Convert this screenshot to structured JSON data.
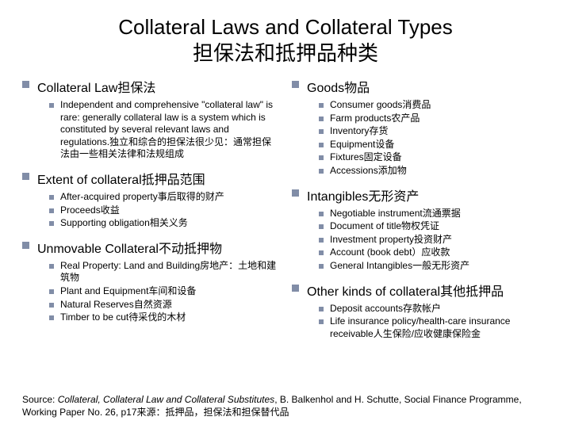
{
  "title_line1": "Collateral Laws and Collateral Types",
  "title_line2": "担保法和抵押品种类",
  "colors": {
    "bullet": "#818da7",
    "background": "#ffffff",
    "text": "#000000"
  },
  "fontsize": {
    "title": 26,
    "section": 16,
    "item": 12,
    "source": 12
  },
  "left": [
    {
      "heading": "Collateral Law担保法",
      "items": [
        "Independent and comprehensive \"collateral law\" is rare: generally collateral law is a system which is constituted by several relevant laws and regulations.独立和综合的担保法很少见：通常担保法由一些相关法律和法规组成"
      ]
    },
    {
      "heading": "Extent of collateral抵押品范围",
      "items": [
        "After-acquired property事后取得的财产",
        "Proceeds收益",
        "Supporting obligation相关义务"
      ]
    },
    {
      "heading": "Unmovable Collateral不动抵押物",
      "items": [
        "Real Property: Land and Building房地产：土地和建筑物",
        "Plant and Equipment车间和设备",
        "Natural Reserves自然资源",
        "Timber to be cut待采伐的木材"
      ]
    }
  ],
  "right": [
    {
      "heading": "Goods物品",
      "items": [
        "Consumer goods消费品",
        "Farm products农产品",
        "Inventory存货",
        "Equipment设备",
        "Fixtures固定设备",
        "Accessions添加物"
      ]
    },
    {
      "heading": "Intangibles无形资产",
      "items": [
        "Negotiable instrument流通票据",
        "Document of title物权凭证",
        "Investment property投资财产",
        "Account (book debt）应收款",
        "General Intangibles一般无形资产"
      ]
    },
    {
      "heading": "Other kinds of collateral其他抵押品",
      "items": [
        "Deposit accounts存款帐户",
        "Life insurance policy/health-care insurance receivable人生保险/应收健康保险金"
      ]
    }
  ],
  "source": {
    "prefix": "Source: ",
    "italic": "Collateral, Collateral Law and Collateral Substitutes",
    "rest": ", B. Balkenhol and H. Schutte, Social Finance Programme, Working Paper No. 26, p17来源：抵押品，担保法和担保替代品"
  }
}
